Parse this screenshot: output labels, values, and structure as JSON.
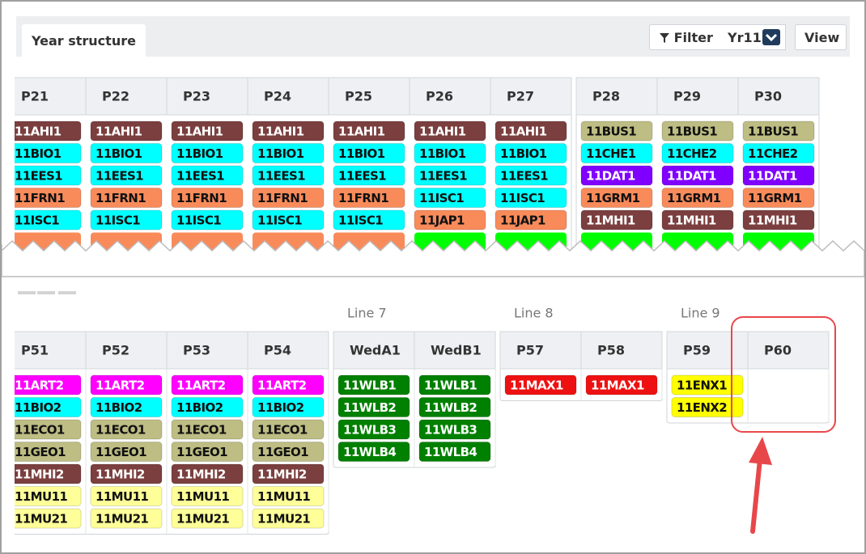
{
  "header": {
    "tab": "Year structure",
    "filter": "Filter",
    "year": "Yr11",
    "view": "View"
  },
  "upper": {
    "groups": [
      {
        "periods": [
          {
            "name": "P21",
            "partial_color": "#f98b5b",
            "classes": [
              {
                "code": "11AHI1",
                "color": "#7b3f3f"
              },
              {
                "code": "11BIO1",
                "color": "#00ffff"
              },
              {
                "code": "11EES1",
                "color": "#00ffff"
              },
              {
                "code": "11FRN1",
                "color": "#f98b5b"
              },
              {
                "code": "11ISC1",
                "color": "#00ffff"
              }
            ]
          },
          {
            "name": "P22",
            "partial_color": "#f98b5b",
            "classes": [
              {
                "code": "11AHI1",
                "color": "#7b3f3f"
              },
              {
                "code": "11BIO1",
                "color": "#00ffff"
              },
              {
                "code": "11EES1",
                "color": "#00ffff"
              },
              {
                "code": "11FRN1",
                "color": "#f98b5b"
              },
              {
                "code": "11ISC1",
                "color": "#00ffff"
              }
            ]
          },
          {
            "name": "P23",
            "partial_color": "#f98b5b",
            "classes": [
              {
                "code": "11AHI1",
                "color": "#7b3f3f"
              },
              {
                "code": "11BIO1",
                "color": "#00ffff"
              },
              {
                "code": "11EES1",
                "color": "#00ffff"
              },
              {
                "code": "11FRN1",
                "color": "#f98b5b"
              },
              {
                "code": "11ISC1",
                "color": "#00ffff"
              }
            ]
          },
          {
            "name": "P24",
            "partial_color": "#f98b5b",
            "classes": [
              {
                "code": "11AHI1",
                "color": "#7b3f3f"
              },
              {
                "code": "11BIO1",
                "color": "#00ffff"
              },
              {
                "code": "11EES1",
                "color": "#00ffff"
              },
              {
                "code": "11FRN1",
                "color": "#f98b5b"
              },
              {
                "code": "11ISC1",
                "color": "#00ffff"
              }
            ]
          },
          {
            "name": "P25",
            "partial_color": "#f98b5b",
            "classes": [
              {
                "code": "11AHI1",
                "color": "#7b3f3f"
              },
              {
                "code": "11BIO1",
                "color": "#00ffff"
              },
              {
                "code": "11EES1",
                "color": "#00ffff"
              },
              {
                "code": "11FRN1",
                "color": "#f98b5b"
              },
              {
                "code": "11ISC1",
                "color": "#00ffff"
              }
            ]
          },
          {
            "name": "P26",
            "partial_color": "#00ff00",
            "classes": [
              {
                "code": "11AHI1",
                "color": "#7b3f3f"
              },
              {
                "code": "11BIO1",
                "color": "#00ffff"
              },
              {
                "code": "11EES1",
                "color": "#00ffff"
              },
              {
                "code": "11ISC1",
                "color": "#00ffff"
              },
              {
                "code": "11JAP1",
                "color": "#f98b5b"
              }
            ]
          },
          {
            "name": "P27",
            "partial_color": "#00ff00",
            "classes": [
              {
                "code": "11AHI1",
                "color": "#7b3f3f"
              },
              {
                "code": "11BIO1",
                "color": "#00ffff"
              },
              {
                "code": "11EES1",
                "color": "#00ffff"
              },
              {
                "code": "11ISC1",
                "color": "#00ffff"
              },
              {
                "code": "11JAP1",
                "color": "#f98b5b"
              }
            ]
          }
        ]
      },
      {
        "periods": [
          {
            "name": "P28",
            "partial_color": "#00ff00",
            "classes": [
              {
                "code": "11BUS1",
                "color": "#bdbd84"
              },
              {
                "code": "11CHE1",
                "color": "#00ffff"
              },
              {
                "code": "11DAT1",
                "color": "#8000ff"
              },
              {
                "code": "11GRM1",
                "color": "#f98b5b"
              },
              {
                "code": "11MHI1",
                "color": "#7b3f3f"
              }
            ]
          },
          {
            "name": "P29",
            "partial_color": "#00ff00",
            "classes": [
              {
                "code": "11BUS1",
                "color": "#bdbd84"
              },
              {
                "code": "11CHE2",
                "color": "#00ffff"
              },
              {
                "code": "11DAT1",
                "color": "#8000ff"
              },
              {
                "code": "11GRM1",
                "color": "#f98b5b"
              },
              {
                "code": "11MHI1",
                "color": "#7b3f3f"
              }
            ]
          },
          {
            "name": "P30",
            "partial_color": "#00ff00",
            "classes": [
              {
                "code": "11BUS1",
                "color": "#bdbd84"
              },
              {
                "code": "11CHE2",
                "color": "#00ffff"
              },
              {
                "code": "11DAT1",
                "color": "#8000ff"
              },
              {
                "code": "11GRM1",
                "color": "#f98b5b"
              },
              {
                "code": "11MHI1",
                "color": "#7b3f3f"
              }
            ]
          }
        ]
      }
    ]
  },
  "lower": {
    "groups": [
      {
        "periods": [
          {
            "name": "P51",
            "classes": [
              {
                "code": "11ART2",
                "color": "#ff00ff"
              },
              {
                "code": "11BIO2",
                "color": "#00ffff"
              },
              {
                "code": "11ECO1",
                "color": "#bdbd84"
              },
              {
                "code": "11GEO1",
                "color": "#bdbd84"
              },
              {
                "code": "11MHI2",
                "color": "#7b3f3f"
              },
              {
                "code": "11MU11",
                "color": "#ffff99"
              },
              {
                "code": "11MU21",
                "color": "#ffff99"
              }
            ]
          },
          {
            "name": "P52",
            "classes": [
              {
                "code": "11ART2",
                "color": "#ff00ff"
              },
              {
                "code": "11BIO2",
                "color": "#00ffff"
              },
              {
                "code": "11ECO1",
                "color": "#bdbd84"
              },
              {
                "code": "11GEO1",
                "color": "#bdbd84"
              },
              {
                "code": "11MHI2",
                "color": "#7b3f3f"
              },
              {
                "code": "11MU11",
                "color": "#ffff99"
              },
              {
                "code": "11MU21",
                "color": "#ffff99"
              }
            ]
          },
          {
            "name": "P53",
            "classes": [
              {
                "code": "11ART2",
                "color": "#ff00ff"
              },
              {
                "code": "11BIO2",
                "color": "#00ffff"
              },
              {
                "code": "11ECO1",
                "color": "#bdbd84"
              },
              {
                "code": "11GEO1",
                "color": "#bdbd84"
              },
              {
                "code": "11MHI2",
                "color": "#7b3f3f"
              },
              {
                "code": "11MU11",
                "color": "#ffff99"
              },
              {
                "code": "11MU21",
                "color": "#ffff99"
              }
            ]
          },
          {
            "name": "P54",
            "classes": [
              {
                "code": "11ART2",
                "color": "#ff00ff"
              },
              {
                "code": "11BIO2",
                "color": "#00ffff"
              },
              {
                "code": "11ECO1",
                "color": "#bdbd84"
              },
              {
                "code": "11GEO1",
                "color": "#bdbd84"
              },
              {
                "code": "11MHI2",
                "color": "#7b3f3f"
              },
              {
                "code": "11MU11",
                "color": "#ffff99"
              },
              {
                "code": "11MU21",
                "color": "#ffff99"
              }
            ]
          }
        ]
      },
      {
        "line": "Line 7",
        "periods": [
          {
            "name": "WedA1",
            "classes": [
              {
                "code": "11WLB1",
                "color": "#008000"
              },
              {
                "code": "11WLB2",
                "color": "#008000"
              },
              {
                "code": "11WLB3",
                "color": "#008000"
              },
              {
                "code": "11WLB4",
                "color": "#008000"
              }
            ]
          },
          {
            "name": "WedB1",
            "classes": [
              {
                "code": "11WLB1",
                "color": "#008000"
              },
              {
                "code": "11WLB2",
                "color": "#008000"
              },
              {
                "code": "11WLB3",
                "color": "#008000"
              },
              {
                "code": "11WLB4",
                "color": "#008000"
              }
            ]
          }
        ]
      },
      {
        "line": "Line 8",
        "periods": [
          {
            "name": "P57",
            "classes": [
              {
                "code": "11MAX1",
                "color": "#ee1111"
              }
            ]
          },
          {
            "name": "P58",
            "classes": [
              {
                "code": "11MAX1",
                "color": "#ee1111"
              }
            ]
          }
        ]
      },
      {
        "line": "Line 9",
        "periods": [
          {
            "name": "P59",
            "classes": [
              {
                "code": "11ENX1",
                "color": "#ffff00"
              },
              {
                "code": "11ENX2",
                "color": "#ffff00"
              }
            ]
          },
          {
            "name": "P60",
            "classes": []
          }
        ]
      }
    ]
  }
}
